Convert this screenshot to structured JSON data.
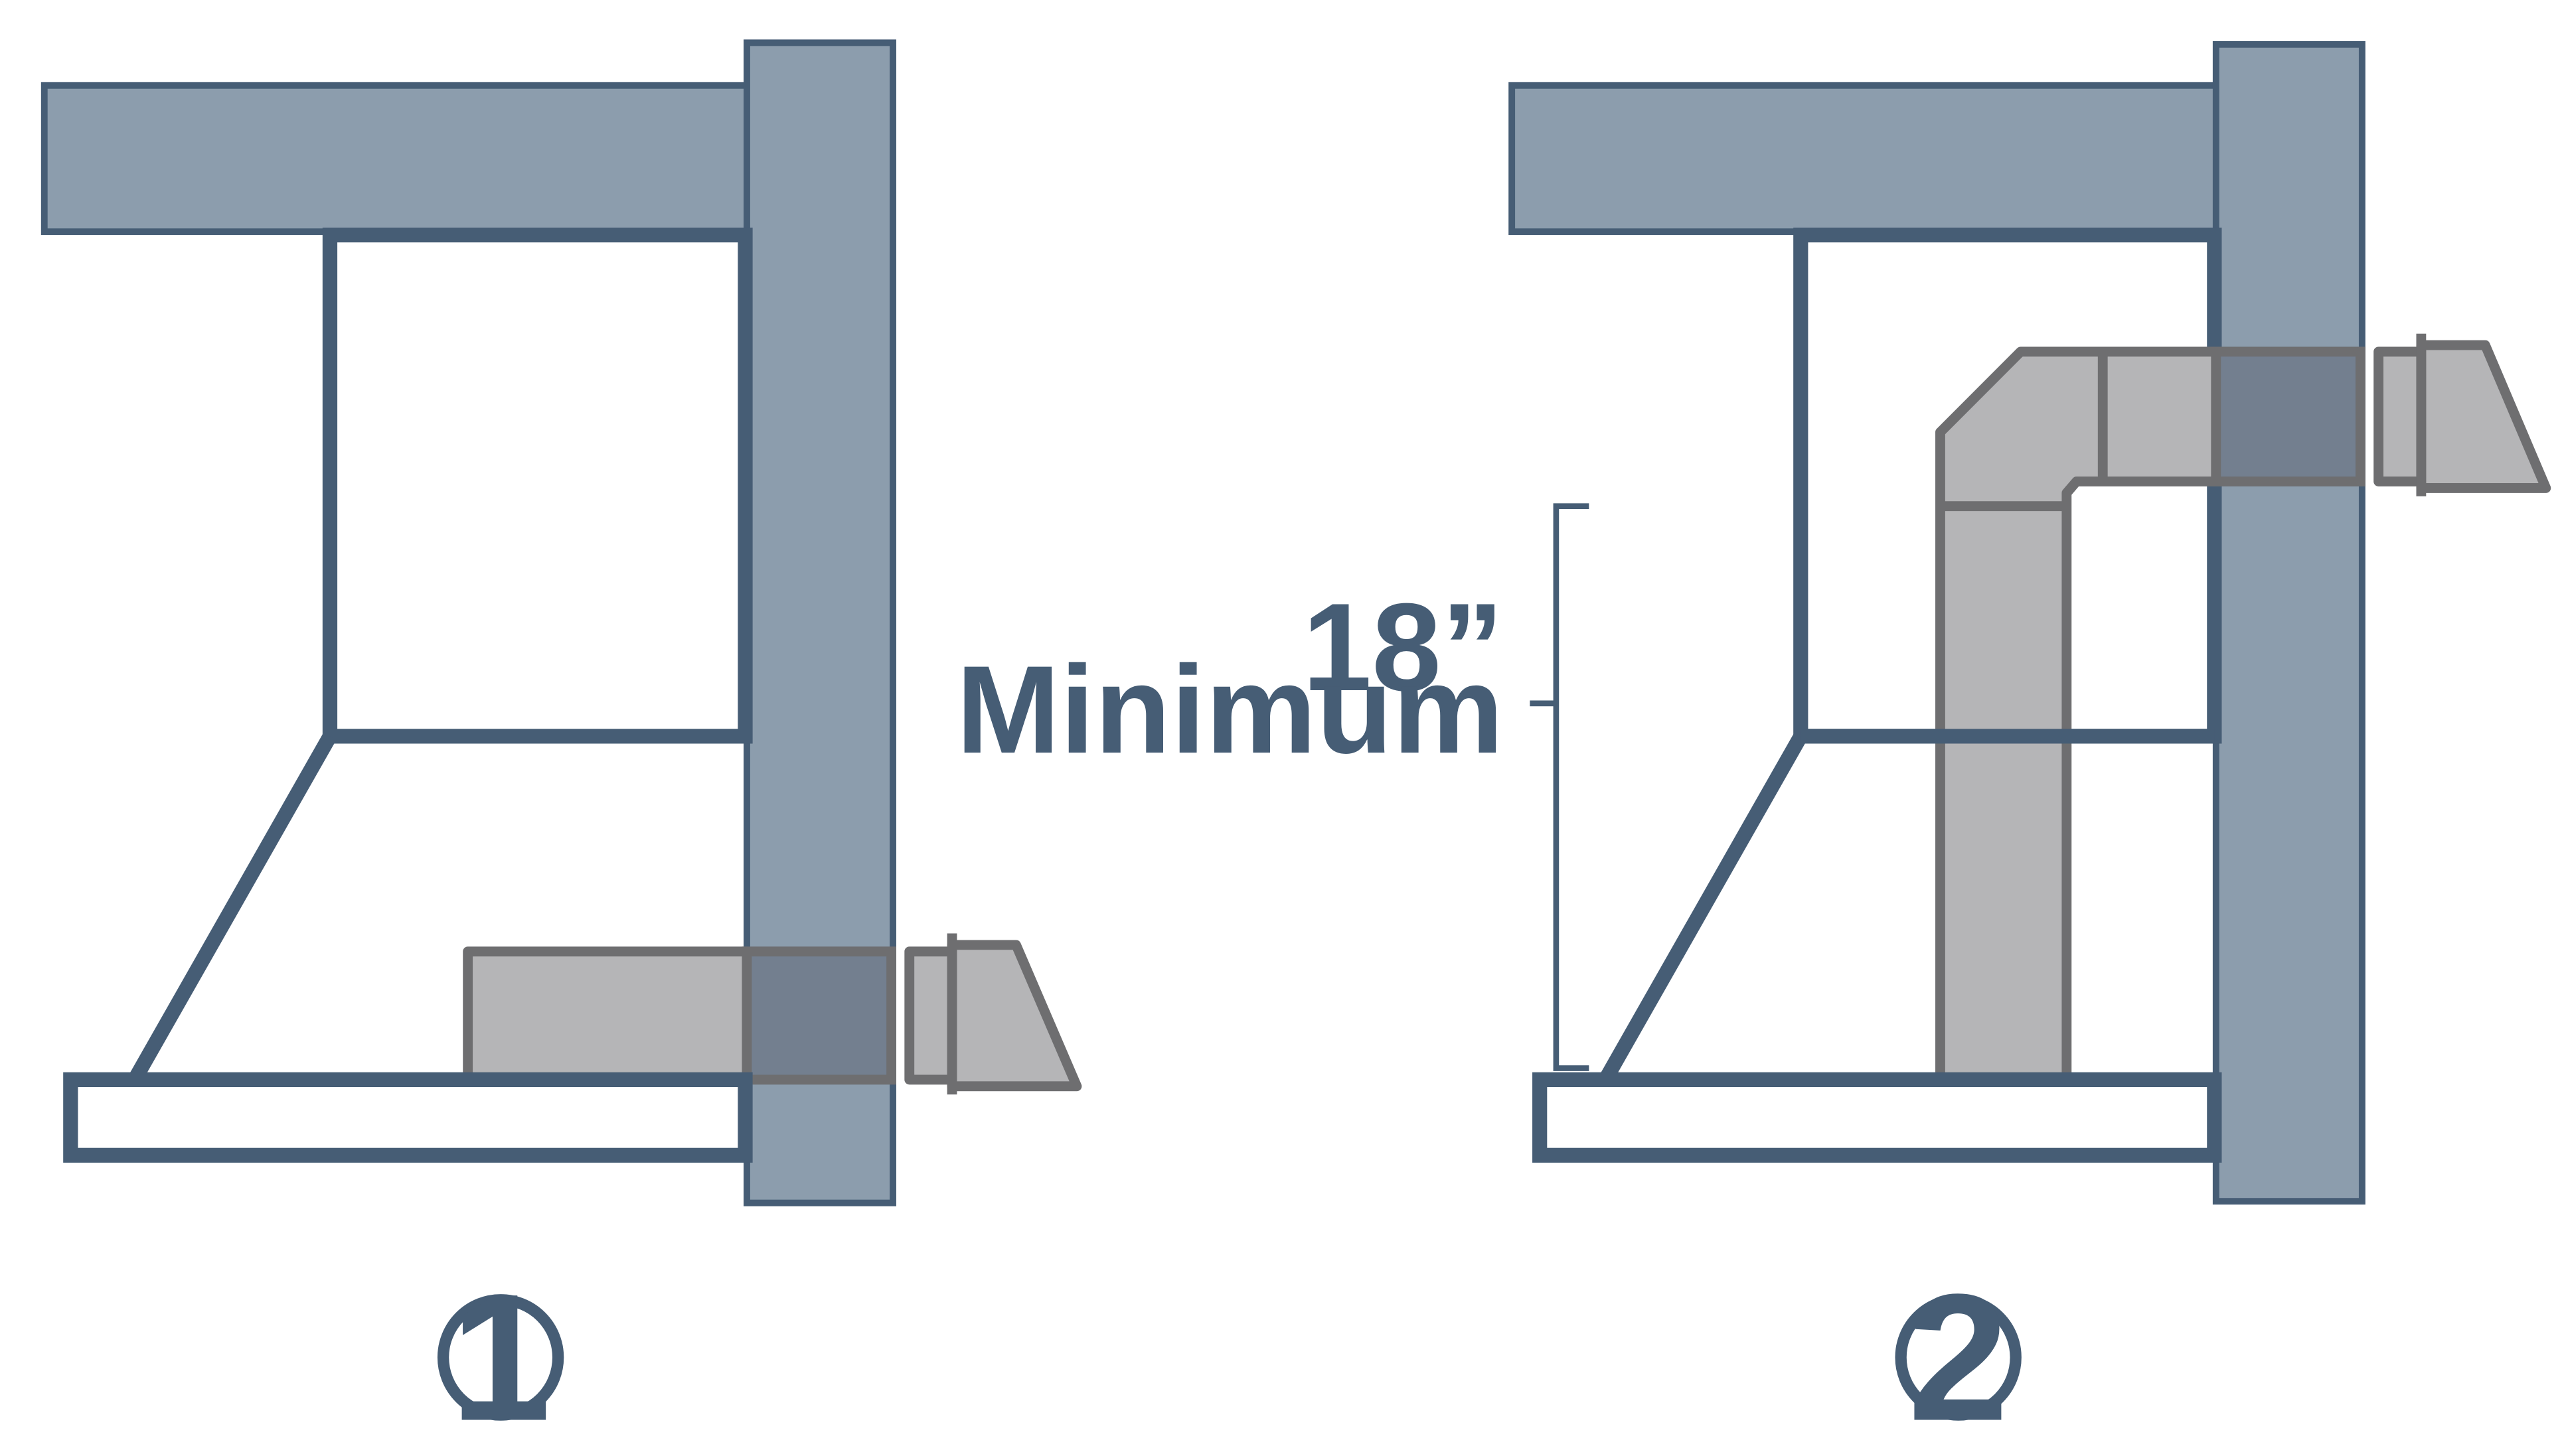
{
  "figures": [
    {
      "number": "1",
      "description_none": ""
    },
    {
      "number": "2",
      "dimension": {
        "value": "18”",
        "label": "Minimum"
      }
    }
  ],
  "colors": {
    "wall": "#8c9dad",
    "outline": "#465d75",
    "duct": "#b5b5b7",
    "duct_outline": "#6e6e70",
    "duct_through_wall": "#737f8f"
  }
}
